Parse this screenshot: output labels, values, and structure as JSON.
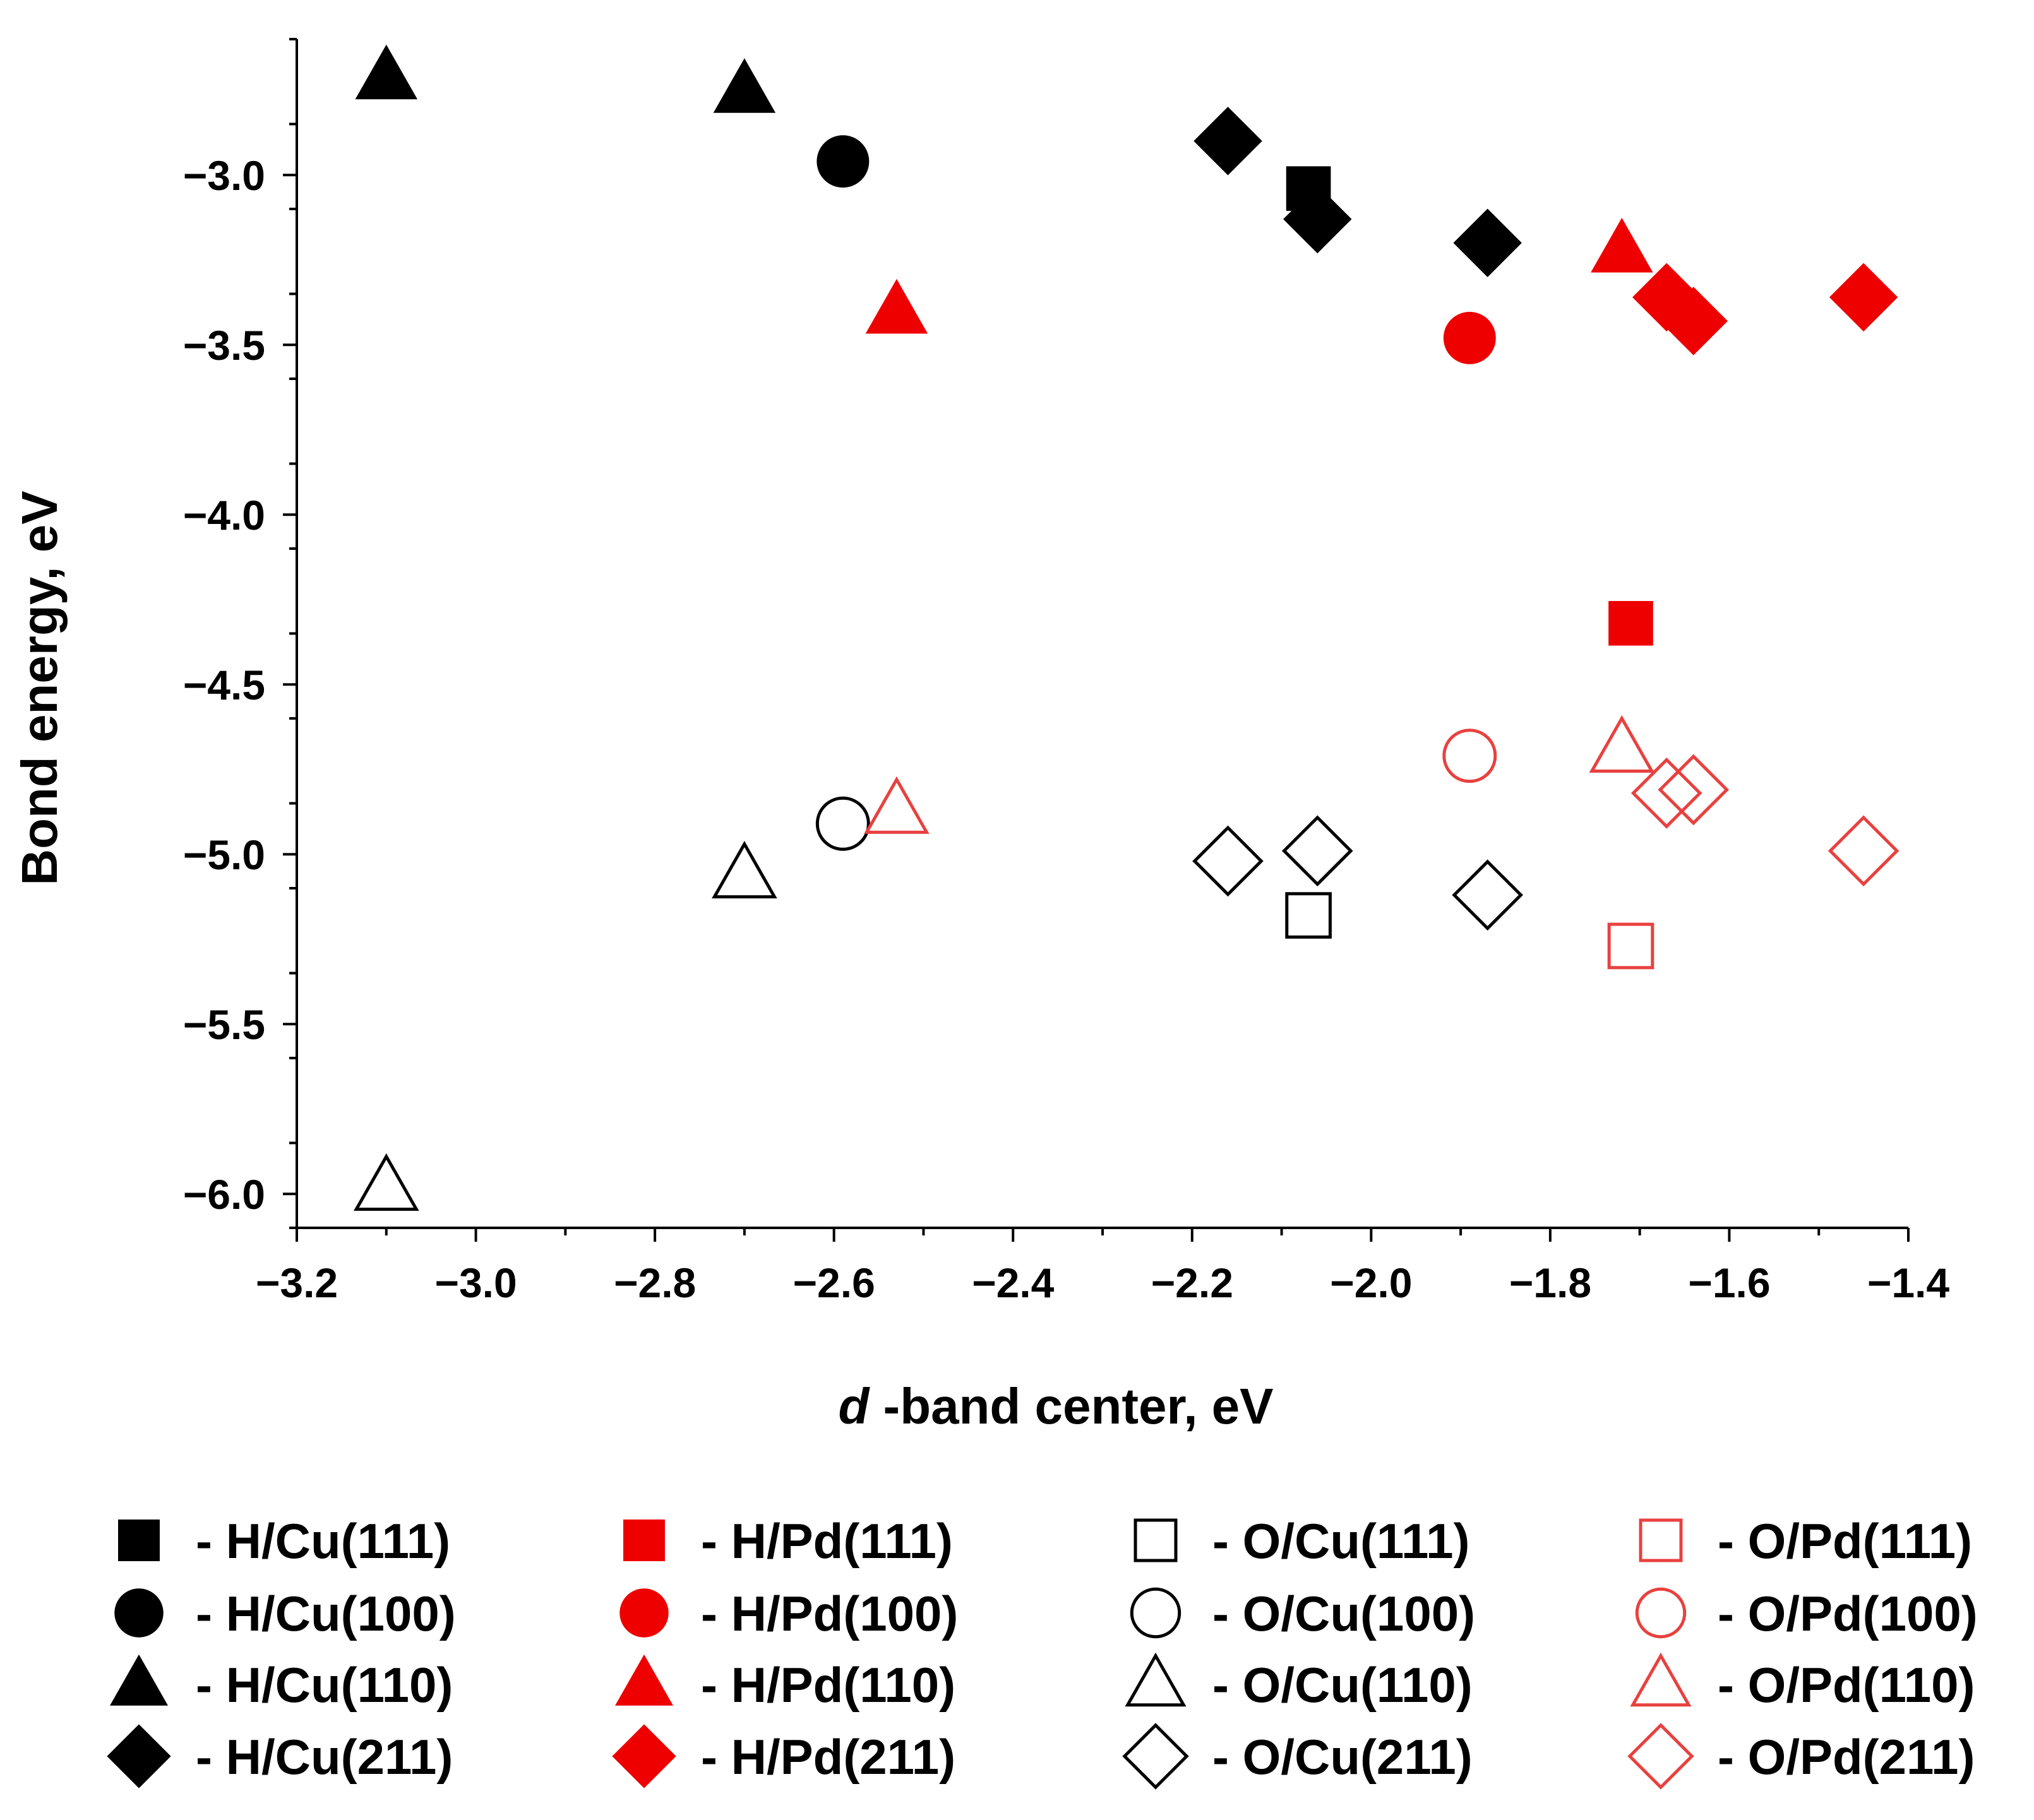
{
  "chart_data": {
    "type": "scatter",
    "title": "",
    "xlabel_italic": "d",
    "xlabel_rest": " -band center, eV",
    "ylabel": "Bond energy, eV",
    "xlim": [
      -3.2,
      -1.4
    ],
    "ylim": [
      -6.1,
      -2.6
    ],
    "xticks": [
      -3.2,
      -3.0,
      -2.8,
      -2.6,
      -2.4,
      -2.2,
      -2.0,
      -1.8,
      -1.6,
      -1.4
    ],
    "xtick_labels": [
      "−3.2",
      "−3.0",
      "−2.8",
      "−2.6",
      "−2.4",
      "−2.2",
      "−2.0",
      "−1.8",
      "−1.6",
      "−1.4"
    ],
    "yticks": [
      -3.0,
      -3.5,
      -4.0,
      -4.5,
      -5.0,
      -5.5,
      -6.0
    ],
    "ytick_labels": [
      "−3.0",
      "−3.5",
      "−4.0",
      "−4.5",
      "−5.0",
      "−5.5",
      "−6.0"
    ],
    "colors": {
      "black": "#000000",
      "red": "#ee0000",
      "red_open": "#e8413f"
    },
    "series": [
      {
        "name": "H/Cu(111)",
        "label": "- H/Cu(111)",
        "marker": "square",
        "filled": true,
        "color": "black",
        "points": [
          [
            -2.07,
            -3.04
          ]
        ]
      },
      {
        "name": "H/Cu(100)",
        "label": "- H/Cu(100)",
        "marker": "circle",
        "filled": true,
        "color": "black",
        "points": [
          [
            -2.59,
            -2.96
          ]
        ]
      },
      {
        "name": "H/Cu(110)",
        "label": "- H/Cu(110)",
        "marker": "triangle",
        "filled": true,
        "color": "black",
        "points": [
          [
            -3.1,
            -2.71
          ],
          [
            -2.7,
            -2.75
          ]
        ]
      },
      {
        "name": "H/Cu(211)",
        "label": "- H/Cu(211)",
        "marker": "diamond",
        "filled": true,
        "color": "black",
        "points": [
          [
            -2.16,
            -2.9
          ],
          [
            -2.06,
            -3.13
          ],
          [
            -1.87,
            -3.2
          ]
        ]
      },
      {
        "name": "H/Pd(111)",
        "label": "- H/Pd(111)",
        "marker": "square",
        "filled": true,
        "color": "red",
        "points": [
          [
            -1.71,
            -4.32
          ]
        ]
      },
      {
        "name": "H/Pd(100)",
        "label": "- H/Pd(100)",
        "marker": "circle",
        "filled": true,
        "color": "red",
        "points": [
          [
            -1.89,
            -3.48
          ]
        ]
      },
      {
        "name": "H/Pd(110)",
        "label": "- H/Pd(110)",
        "marker": "triangle",
        "filled": true,
        "color": "red",
        "points": [
          [
            -2.53,
            -3.4
          ],
          [
            -1.72,
            -3.22
          ]
        ]
      },
      {
        "name": "H/Pd(211)",
        "label": "- H/Pd(211)",
        "marker": "diamond",
        "filled": true,
        "color": "red",
        "points": [
          [
            -1.67,
            -3.36
          ],
          [
            -1.64,
            -3.43
          ],
          [
            -1.45,
            -3.36
          ]
        ]
      },
      {
        "name": "O/Cu(111)",
        "label": "- O/Cu(111)",
        "marker": "square",
        "filled": false,
        "color": "black",
        "points": [
          [
            -2.07,
            -5.18
          ]
        ]
      },
      {
        "name": "O/Cu(100)",
        "label": "- O/Cu(100)",
        "marker": "circle",
        "filled": false,
        "color": "black",
        "points": [
          [
            -2.59,
            -4.91
          ]
        ]
      },
      {
        "name": "O/Cu(110)",
        "label": "- O/Cu(110)",
        "marker": "triangle",
        "filled": false,
        "color": "black",
        "points": [
          [
            -3.1,
            -5.98
          ],
          [
            -2.7,
            -5.06
          ]
        ]
      },
      {
        "name": "O/Cu(211)",
        "label": "- O/Cu(211)",
        "marker": "diamond",
        "filled": false,
        "color": "black",
        "points": [
          [
            -2.16,
            -5.02
          ],
          [
            -2.06,
            -4.99
          ],
          [
            -1.87,
            -5.12
          ]
        ]
      },
      {
        "name": "O/Pd(111)",
        "label": "- O/Pd(111)",
        "marker": "square",
        "filled": false,
        "color": "red_open",
        "points": [
          [
            -1.71,
            -5.27
          ]
        ]
      },
      {
        "name": "O/Pd(100)",
        "label": "- O/Pd(100)",
        "marker": "circle",
        "filled": false,
        "color": "red_open",
        "points": [
          [
            -1.89,
            -4.71
          ]
        ]
      },
      {
        "name": "O/Pd(110)",
        "label": "- O/Pd(110)",
        "marker": "triangle",
        "filled": false,
        "color": "red_open",
        "points": [
          [
            -2.53,
            -4.87
          ],
          [
            -1.72,
            -4.69
          ]
        ]
      },
      {
        "name": "O/Pd(211)",
        "label": "- O/Pd(211)",
        "marker": "diamond",
        "filled": false,
        "color": "red_open",
        "points": [
          [
            -1.67,
            -4.82
          ],
          [
            -1.64,
            -4.81
          ],
          [
            -1.45,
            -4.99
          ]
        ]
      }
    ]
  }
}
